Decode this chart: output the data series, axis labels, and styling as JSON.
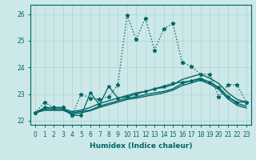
{
  "xlabel": "Humidex (Indice chaleur)",
  "ylabel": "",
  "xlim": [
    -0.5,
    23.5
  ],
  "ylim": [
    21.85,
    26.35
  ],
  "yticks": [
    22,
    23,
    24,
    25,
    26
  ],
  "xticks": [
    0,
    1,
    2,
    3,
    4,
    5,
    6,
    7,
    8,
    9,
    10,
    11,
    12,
    13,
    14,
    15,
    16,
    17,
    18,
    19,
    20,
    21,
    22,
    23
  ],
  "bg_color": "#cce8e8",
  "grid_color": "#b8d8d8",
  "line_color": "#006666",
  "lines": [
    {
      "x": [
        0,
        1,
        2,
        3,
        4,
        5,
        6,
        7,
        8,
        9,
        10,
        11,
        12,
        13,
        14,
        15,
        16,
        17,
        18,
        19,
        20,
        21,
        22,
        23
      ],
      "y": [
        22.3,
        22.7,
        22.5,
        22.5,
        22.2,
        23.0,
        22.85,
        22.8,
        22.9,
        23.35,
        25.95,
        25.05,
        25.85,
        24.65,
        25.45,
        25.65,
        24.2,
        24.05,
        23.75,
        23.75,
        22.9,
        23.35,
        23.35,
        22.7
      ],
      "style": ":",
      "marker": "*",
      "markersize": 3.5,
      "lw": 1.0
    },
    {
      "x": [
        0,
        1,
        2,
        3,
        4,
        5,
        6,
        7,
        8,
        9,
        10,
        11,
        12,
        13,
        14,
        15,
        16,
        17,
        18,
        19,
        20,
        21,
        22,
        23
      ],
      "y": [
        22.3,
        22.45,
        22.45,
        22.45,
        22.35,
        22.4,
        22.5,
        22.65,
        22.75,
        22.85,
        22.95,
        23.05,
        23.1,
        23.2,
        23.25,
        23.35,
        23.55,
        23.65,
        23.75,
        23.6,
        23.4,
        23.05,
        22.8,
        22.7
      ],
      "style": "-",
      "marker": null,
      "markersize": 0,
      "lw": 1.0
    },
    {
      "x": [
        0,
        1,
        2,
        3,
        4,
        5,
        6,
        7,
        8,
        9,
        10,
        11,
        12,
        13,
        14,
        15,
        16,
        17,
        18,
        19,
        20,
        21,
        22,
        23
      ],
      "y": [
        22.3,
        22.4,
        22.4,
        22.4,
        22.3,
        22.35,
        22.4,
        22.55,
        22.65,
        22.75,
        22.85,
        22.9,
        22.98,
        23.05,
        23.1,
        23.2,
        23.4,
        23.5,
        23.6,
        23.45,
        23.25,
        22.9,
        22.65,
        22.55
      ],
      "style": "-",
      "marker": null,
      "markersize": 0,
      "lw": 1.0
    },
    {
      "x": [
        0,
        1,
        2,
        3,
        4,
        5,
        6,
        7,
        8,
        9,
        10,
        11,
        12,
        13,
        14,
        15,
        16,
        17,
        18,
        19,
        20,
        21,
        22,
        23
      ],
      "y": [
        22.3,
        22.4,
        22.4,
        22.4,
        22.25,
        22.3,
        22.38,
        22.5,
        22.6,
        22.7,
        22.8,
        22.85,
        22.92,
        22.98,
        23.05,
        23.15,
        23.32,
        23.42,
        23.52,
        23.38,
        23.18,
        22.82,
        22.58,
        22.48
      ],
      "style": "-",
      "marker": null,
      "markersize": 0,
      "lw": 1.0
    },
    {
      "x": [
        0,
        1,
        2,
        3,
        4,
        5,
        6,
        7,
        8,
        9,
        10,
        11,
        12,
        13,
        14,
        15,
        16,
        17,
        18,
        19,
        20,
        21,
        22,
        23
      ],
      "y": [
        22.3,
        22.5,
        22.5,
        22.5,
        22.2,
        22.2,
        23.05,
        22.6,
        23.3,
        22.85,
        22.9,
        23.0,
        23.1,
        23.2,
        23.3,
        23.4,
        23.45,
        23.5,
        23.55,
        23.45,
        23.25,
        22.9,
        22.7,
        22.7
      ],
      "style": "-",
      "marker": "*",
      "markersize": 3.0,
      "lw": 0.9
    }
  ]
}
